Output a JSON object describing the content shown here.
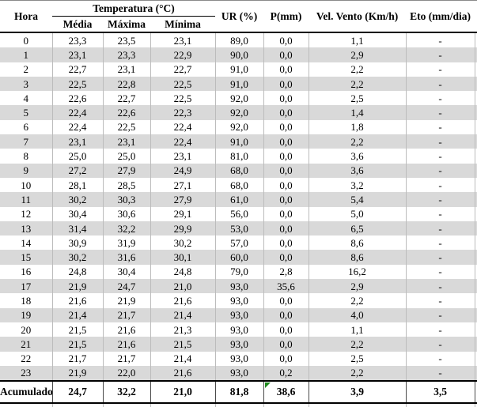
{
  "table": {
    "header": {
      "hora": "Hora",
      "temperatura_group": "Temperatura (°C)",
      "sub": {
        "media": "Média",
        "maxima": "Máxima",
        "minima": "Mínima"
      },
      "ur": "UR (%)",
      "p": "P(mm)",
      "vel_vento": "Vel. Vento (Km/h)",
      "eto": "Eto (mm/dia)"
    },
    "rows": [
      [
        "0",
        "23,3",
        "23,5",
        "23,1",
        "89,0",
        "0,0",
        "1,1",
        "-"
      ],
      [
        "1",
        "23,1",
        "23,3",
        "22,9",
        "90,0",
        "0,0",
        "2,9",
        "-"
      ],
      [
        "2",
        "22,7",
        "23,1",
        "22,7",
        "91,0",
        "0,0",
        "2,2",
        "-"
      ],
      [
        "3",
        "22,5",
        "22,8",
        "22,5",
        "91,0",
        "0,0",
        "2,2",
        "-"
      ],
      [
        "4",
        "22,6",
        "22,7",
        "22,5",
        "92,0",
        "0,0",
        "2,5",
        "-"
      ],
      [
        "5",
        "22,4",
        "22,6",
        "22,3",
        "92,0",
        "0,0",
        "1,4",
        "-"
      ],
      [
        "6",
        "22,4",
        "22,5",
        "22,4",
        "92,0",
        "0,0",
        "1,8",
        "-"
      ],
      [
        "7",
        "23,1",
        "23,1",
        "22,4",
        "91,0",
        "0,0",
        "2,2",
        "-"
      ],
      [
        "8",
        "25,0",
        "25,0",
        "23,1",
        "81,0",
        "0,0",
        "3,6",
        "-"
      ],
      [
        "9",
        "27,2",
        "27,9",
        "24,9",
        "68,0",
        "0,0",
        "3,6",
        "-"
      ],
      [
        "10",
        "28,1",
        "28,5",
        "27,1",
        "68,0",
        "0,0",
        "3,2",
        "-"
      ],
      [
        "11",
        "30,2",
        "30,3",
        "27,9",
        "61,0",
        "0,0",
        "5,4",
        "-"
      ],
      [
        "12",
        "30,4",
        "30,6",
        "29,1",
        "56,0",
        "0,0",
        "5,0",
        "-"
      ],
      [
        "13",
        "31,4",
        "32,2",
        "29,9",
        "53,0",
        "0,0",
        "6,5",
        "-"
      ],
      [
        "14",
        "30,9",
        "31,9",
        "30,2",
        "57,0",
        "0,0",
        "8,6",
        "-"
      ],
      [
        "15",
        "30,2",
        "31,6",
        "30,1",
        "60,0",
        "0,0",
        "8,6",
        "-"
      ],
      [
        "16",
        "24,8",
        "30,4",
        "24,8",
        "79,0",
        "2,8",
        "16,2",
        "-"
      ],
      [
        "17",
        "21,9",
        "24,7",
        "21,0",
        "93,0",
        "35,6",
        "2,9",
        "-"
      ],
      [
        "18",
        "21,6",
        "21,9",
        "21,6",
        "93,0",
        "0,0",
        "2,2",
        "-"
      ],
      [
        "19",
        "21,4",
        "21,7",
        "21,4",
        "93,0",
        "0,0",
        "4,0",
        "-"
      ],
      [
        "20",
        "21,5",
        "21,6",
        "21,3",
        "93,0",
        "0,0",
        "1,1",
        "-"
      ],
      [
        "21",
        "21,5",
        "21,6",
        "21,5",
        "93,0",
        "0,0",
        "2,2",
        "-"
      ],
      [
        "22",
        "21,7",
        "21,7",
        "21,4",
        "93,0",
        "0,0",
        "2,5",
        "-"
      ],
      [
        "23",
        "21,9",
        "22,0",
        "21,6",
        "93,0",
        "0,2",
        "2,2",
        "-"
      ]
    ],
    "footer": {
      "label": "Acumulado",
      "media": "24,7",
      "maxima": "32,2",
      "minima": "21,0",
      "ur": "81,8",
      "p": "38,6",
      "vel_vento": "3,9",
      "eto": "3,5"
    },
    "colors": {
      "stripe": "#d9d9d9",
      "grid_light": "#bcbcbc",
      "grid_dark": "#4a4a4a",
      "rule": "#000000",
      "flag_green": "#1e8a1e",
      "text": "#000000"
    }
  }
}
